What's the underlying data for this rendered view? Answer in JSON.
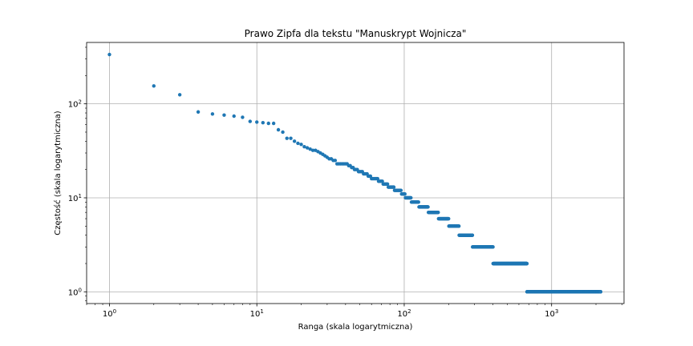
{
  "chart_data": {
    "type": "scatter",
    "title": "Prawo Zipfa dla tekstu \"Manuskrypt Wojnicza\"",
    "xlabel": "Ranga (skala logarytmiczna)",
    "ylabel": "Częstość (skala logarytmiczna)",
    "xscale": "log",
    "yscale": "log",
    "xlim": [
      0.7,
      3100
    ],
    "ylim": [
      0.75,
      450
    ],
    "grid": true,
    "marker_color": "#1f77b4",
    "xticks": [
      {
        "base": "10",
        "exp": "0",
        "value": 1
      },
      {
        "base": "10",
        "exp": "1",
        "value": 10
      },
      {
        "base": "10",
        "exp": "2",
        "value": 100
      },
      {
        "base": "10",
        "exp": "3",
        "value": 1000
      }
    ],
    "yticks": [
      {
        "base": "10",
        "exp": "0",
        "value": 1
      },
      {
        "base": "10",
        "exp": "1",
        "value": 10
      },
      {
        "base": "10",
        "exp": "2",
        "value": 100
      }
    ],
    "head_points": {
      "x": [
        1,
        2,
        3,
        4,
        5,
        6,
        7,
        8,
        9,
        10,
        11,
        12,
        13,
        14,
        15,
        16,
        17,
        18,
        19,
        20,
        21,
        22,
        23,
        24,
        25,
        26,
        27,
        28,
        29,
        30
      ],
      "y": [
        335,
        155,
        125,
        82,
        78,
        76,
        74,
        72,
        65,
        64,
        63,
        62,
        62,
        53,
        50,
        43,
        43,
        40,
        38,
        37,
        35,
        34,
        33,
        32,
        32,
        31,
        30,
        29,
        28,
        27
      ]
    },
    "frequency_runs": [
      {
        "y": 26,
        "x_from": 31,
        "x_to": 32
      },
      {
        "y": 25,
        "x_from": 33,
        "x_to": 34
      },
      {
        "y": 23,
        "x_from": 35,
        "x_to": 41
      },
      {
        "y": 22,
        "x_from": 42,
        "x_to": 43
      },
      {
        "y": 21,
        "x_from": 44,
        "x_to": 45
      },
      {
        "y": 20,
        "x_from": 46,
        "x_to": 48
      },
      {
        "y": 19,
        "x_from": 49,
        "x_to": 52
      },
      {
        "y": 18,
        "x_from": 53,
        "x_to": 56
      },
      {
        "y": 17,
        "x_from": 57,
        "x_to": 59
      },
      {
        "y": 16,
        "x_from": 60,
        "x_to": 66
      },
      {
        "y": 15,
        "x_from": 67,
        "x_to": 71
      },
      {
        "y": 14,
        "x_from": 72,
        "x_to": 77
      },
      {
        "y": 13,
        "x_from": 78,
        "x_to": 85
      },
      {
        "y": 12,
        "x_from": 86,
        "x_to": 95
      },
      {
        "y": 11,
        "x_from": 96,
        "x_to": 101
      },
      {
        "y": 10,
        "x_from": 102,
        "x_to": 111
      },
      {
        "y": 9,
        "x_from": 112,
        "x_to": 125
      },
      {
        "y": 8,
        "x_from": 126,
        "x_to": 145
      },
      {
        "y": 7,
        "x_from": 146,
        "x_to": 170
      },
      {
        "y": 6,
        "x_from": 171,
        "x_to": 200
      },
      {
        "y": 5,
        "x_from": 201,
        "x_to": 235
      },
      {
        "y": 4,
        "x_from": 236,
        "x_to": 290
      },
      {
        "y": 3,
        "x_from": 291,
        "x_to": 400
      },
      {
        "y": 2,
        "x_from": 401,
        "x_to": 680
      },
      {
        "y": 1,
        "x_from": 681,
        "x_to": 2150
      }
    ]
  }
}
